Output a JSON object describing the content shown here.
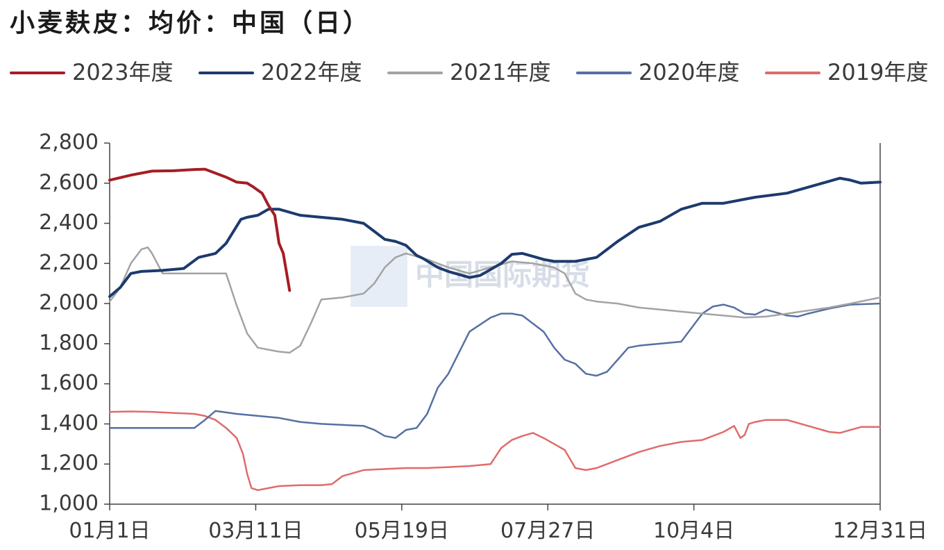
{
  "title": "小麦麸皮：均价：中国（日）",
  "watermark": "中国国际期货",
  "chart_data": {
    "type": "line",
    "title": "小麦麸皮：均价：中国（日）",
    "x_domain": [
      0,
      364
    ],
    "ylim": [
      1000,
      2800
    ],
    "y_ticks": [
      {
        "value": 1000,
        "label": "1,000"
      },
      {
        "value": 1200,
        "label": "1,200"
      },
      {
        "value": 1400,
        "label": "1,400"
      },
      {
        "value": 1600,
        "label": "1,600"
      },
      {
        "value": 1800,
        "label": "1,800"
      },
      {
        "value": 2000,
        "label": "2,000"
      },
      {
        "value": 2200,
        "label": "2,200"
      },
      {
        "value": 2400,
        "label": "2,400"
      },
      {
        "value": 2600,
        "label": "2,600"
      },
      {
        "value": 2800,
        "label": "2,800"
      }
    ],
    "x_ticks": [
      {
        "value": 0,
        "label": "01月1日"
      },
      {
        "value": 69,
        "label": "03月11日"
      },
      {
        "value": 138,
        "label": "05月19日"
      },
      {
        "value": 207,
        "label": "07月27日"
      },
      {
        "value": 276,
        "label": "10月4日"
      },
      {
        "value": 364,
        "label": "12月31日"
      }
    ],
    "grid": false,
    "legend_position": "top",
    "series": [
      {
        "name": "2023年度",
        "color": "#a51d24",
        "width": 4,
        "x": [
          0,
          10,
          20,
          30,
          40,
          45,
          55,
          60,
          65,
          68,
          72,
          75,
          78,
          80,
          82,
          85
        ],
        "y": [
          2615,
          2640,
          2660,
          2662,
          2668,
          2670,
          2630,
          2605,
          2600,
          2580,
          2550,
          2490,
          2440,
          2300,
          2250,
          2065
        ]
      },
      {
        "name": "2022年度",
        "color": "#1c3a6e",
        "width": 4,
        "x": [
          0,
          5,
          10,
          15,
          25,
          35,
          42,
          50,
          55,
          62,
          65,
          70,
          75,
          80,
          90,
          100,
          110,
          120,
          125,
          130,
          135,
          140,
          145,
          148,
          155,
          160,
          170,
          175,
          185,
          190,
          195,
          200,
          205,
          210,
          220,
          230,
          240,
          250,
          260,
          270,
          280,
          290,
          300,
          305,
          320,
          330,
          340,
          345,
          350,
          355,
          364
        ],
        "y": [
          2035,
          2080,
          2150,
          2160,
          2165,
          2175,
          2230,
          2250,
          2300,
          2420,
          2430,
          2440,
          2470,
          2470,
          2440,
          2430,
          2420,
          2400,
          2360,
          2320,
          2310,
          2290,
          2240,
          2225,
          2180,
          2160,
          2130,
          2140,
          2200,
          2245,
          2250,
          2235,
          2220,
          2210,
          2210,
          2230,
          2310,
          2380,
          2410,
          2470,
          2500,
          2500,
          2520,
          2530,
          2550,
          2580,
          2610,
          2625,
          2615,
          2600,
          2605
        ]
      },
      {
        "name": "2021年度",
        "color": "#a3a3a3",
        "width": 2.5,
        "x": [
          0,
          5,
          10,
          15,
          18,
          20,
          25,
          30,
          40,
          50,
          55,
          60,
          65,
          70,
          80,
          85,
          90,
          95,
          100,
          110,
          120,
          125,
          130,
          135,
          140,
          150,
          160,
          170,
          180,
          190,
          200,
          210,
          215,
          220,
          225,
          230,
          240,
          250,
          260,
          270,
          280,
          290,
          300,
          310,
          320,
          330,
          340,
          350,
          364
        ],
        "y": [
          2010,
          2080,
          2200,
          2270,
          2280,
          2250,
          2150,
          2150,
          2150,
          2150,
          2150,
          1990,
          1850,
          1780,
          1760,
          1755,
          1790,
          1900,
          2020,
          2030,
          2050,
          2100,
          2180,
          2230,
          2250,
          2220,
          2180,
          2150,
          2180,
          2210,
          2200,
          2180,
          2150,
          2050,
          2020,
          2010,
          2000,
          1980,
          1970,
          1960,
          1950,
          1940,
          1930,
          1935,
          1950,
          1965,
          1980,
          2000,
          2030
        ]
      },
      {
        "name": "2020年度",
        "color": "#5570a3",
        "width": 2.5,
        "x": [
          0,
          20,
          30,
          40,
          45,
          50,
          60,
          70,
          80,
          90,
          100,
          110,
          120,
          125,
          130,
          135,
          140,
          145,
          150,
          155,
          160,
          170,
          180,
          185,
          190,
          195,
          200,
          205,
          210,
          215,
          220,
          225,
          230,
          235,
          240,
          245,
          250,
          255,
          260,
          270,
          280,
          285,
          290,
          295,
          300,
          305,
          310,
          315,
          320,
          325,
          330,
          340,
          350,
          364
        ],
        "y": [
          1380,
          1380,
          1380,
          1380,
          1420,
          1465,
          1450,
          1440,
          1430,
          1410,
          1400,
          1395,
          1390,
          1370,
          1340,
          1330,
          1370,
          1380,
          1450,
          1580,
          1650,
          1860,
          1930,
          1950,
          1950,
          1940,
          1900,
          1860,
          1780,
          1720,
          1700,
          1650,
          1640,
          1660,
          1720,
          1780,
          1790,
          1795,
          1800,
          1810,
          1950,
          1985,
          1995,
          1980,
          1950,
          1945,
          1970,
          1955,
          1940,
          1935,
          1950,
          1975,
          1995,
          2000
        ]
      },
      {
        "name": "2019年度",
        "color": "#e06b6b",
        "width": 2.5,
        "x": [
          0,
          10,
          20,
          30,
          40,
          45,
          50,
          55,
          60,
          63,
          65,
          67,
          70,
          75,
          80,
          90,
          100,
          105,
          110,
          120,
          130,
          140,
          150,
          160,
          170,
          180,
          185,
          190,
          195,
          200,
          205,
          210,
          215,
          220,
          225,
          230,
          240,
          250,
          260,
          270,
          280,
          290,
          295,
          298,
          300,
          302,
          305,
          310,
          320,
          330,
          340,
          345,
          350,
          355,
          364
        ],
        "y": [
          1460,
          1462,
          1460,
          1455,
          1450,
          1440,
          1420,
          1380,
          1330,
          1250,
          1150,
          1080,
          1070,
          1080,
          1090,
          1095,
          1095,
          1100,
          1140,
          1170,
          1175,
          1180,
          1180,
          1185,
          1190,
          1200,
          1280,
          1320,
          1340,
          1355,
          1330,
          1300,
          1270,
          1180,
          1170,
          1180,
          1220,
          1260,
          1290,
          1310,
          1320,
          1360,
          1390,
          1330,
          1345,
          1400,
          1410,
          1420,
          1420,
          1390,
          1360,
          1355,
          1370,
          1385,
          1385
        ]
      }
    ]
  }
}
